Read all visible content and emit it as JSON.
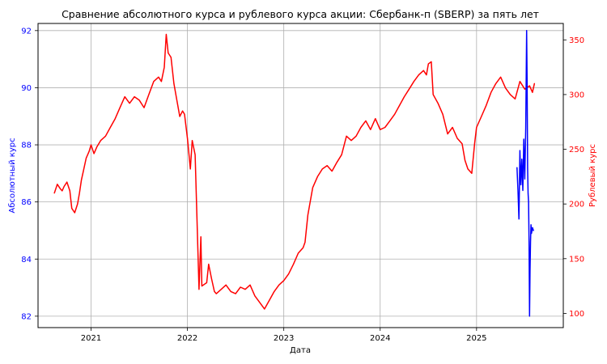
{
  "chart_data": {
    "type": "line",
    "title": "Сравнение абсолютного курса и рублевого курса акции: Сбербанк-п (SBERP) за пять лет",
    "xlabel": "Дата",
    "ylabel_left": "Абсолютный курс",
    "ylabel_right": "Рублевый курс",
    "xlim": [
      2020.45,
      2025.9
    ],
    "ylim_left": [
      81.6,
      92.25
    ],
    "ylim_right": [
      87,
      365
    ],
    "grid": true,
    "x_ticks": [
      2021,
      2022,
      2023,
      2024,
      2025
    ],
    "x_tick_labels": [
      "2021",
      "2022",
      "2023",
      "2024",
      "2025"
    ],
    "y_left_ticks": [
      82,
      84,
      86,
      88,
      90,
      92
    ],
    "y_left_tick_labels": [
      "82",
      "84",
      "86",
      "88",
      "90",
      "92"
    ],
    "y_right_ticks": [
      100,
      150,
      200,
      250,
      300,
      350
    ],
    "y_right_tick_labels": [
      "100",
      "150",
      "200",
      "250",
      "300",
      "350"
    ],
    "colors": {
      "absolute": "#0000ff",
      "ruble": "#ff0000",
      "axis": "#000000",
      "grid": "#b0b0b0"
    },
    "series": [
      {
        "axis": "right",
        "color": "#ff0000",
        "x": [
          2020.62,
          2020.65,
          2020.68,
          2020.7,
          2020.72,
          2020.75,
          2020.78,
          2020.8,
          2020.83,
          2020.86,
          2020.88,
          2020.9,
          2020.92,
          2020.95,
          2020.98,
          2021.0,
          2021.03,
          2021.06,
          2021.1,
          2021.15,
          2021.2,
          2021.25,
          2021.3,
          2021.35,
          2021.4,
          2021.45,
          2021.5,
          2021.55,
          2021.6,
          2021.65,
          2021.7,
          2021.73,
          2021.76,
          2021.78,
          2021.8,
          2021.83,
          2021.86,
          2021.89,
          2021.92,
          2021.95,
          2021.97,
          2022.0,
          2022.03,
          2022.05,
          2022.08,
          2022.12,
          2022.14,
          2022.15,
          2022.2,
          2022.22,
          2022.25,
          2022.28,
          2022.3,
          2022.35,
          2022.4,
          2022.45,
          2022.5,
          2022.55,
          2022.6,
          2022.65,
          2022.7,
          2022.75,
          2022.8,
          2022.85,
          2022.9,
          2022.95,
          2023.0,
          2023.05,
          2023.1,
          2023.15,
          2023.2,
          2023.22,
          2023.25,
          2023.3,
          2023.35,
          2023.4,
          2023.45,
          2023.5,
          2023.55,
          2023.6,
          2023.65,
          2023.7,
          2023.75,
          2023.8,
          2023.85,
          2023.9,
          2023.95,
          2024.0,
          2024.05,
          2024.1,
          2024.15,
          2024.2,
          2024.25,
          2024.3,
          2024.35,
          2024.4,
          2024.45,
          2024.48,
          2024.5,
          2024.53,
          2024.55,
          2024.6,
          2024.65,
          2024.7,
          2024.75,
          2024.8,
          2024.85,
          2024.88,
          2024.91,
          2024.95,
          2024.98,
          2025.0,
          2025.05,
          2025.1,
          2025.15,
          2025.2,
          2025.25,
          2025.3,
          2025.35,
          2025.4,
          2025.45,
          2025.5,
          2025.55,
          2025.58,
          2025.6
        ],
        "values": [
          210,
          218,
          214,
          212,
          216,
          220,
          212,
          196,
          192,
          200,
          210,
          222,
          230,
          242,
          248,
          254,
          246,
          252,
          258,
          262,
          270,
          278,
          288,
          298,
          292,
          298,
          295,
          288,
          300,
          312,
          316,
          312,
          325,
          355,
          338,
          334,
          310,
          295,
          280,
          285,
          282,
          260,
          232,
          258,
          245,
          122,
          170,
          125,
          128,
          145,
          132,
          120,
          118,
          122,
          126,
          120,
          118,
          124,
          122,
          126,
          116,
          110,
          104,
          112,
          120,
          126,
          130,
          136,
          145,
          155,
          160,
          165,
          190,
          215,
          225,
          232,
          235,
          230,
          238,
          245,
          262,
          258,
          262,
          270,
          276,
          268,
          278,
          268,
          270,
          276,
          282,
          290,
          298,
          305,
          312,
          318,
          322,
          318,
          328,
          330,
          300,
          292,
          282,
          264,
          270,
          260,
          255,
          240,
          232,
          228,
          255,
          270,
          280,
          290,
          302,
          310,
          316,
          306,
          300,
          296,
          312,
          305,
          308,
          302,
          310
        ]
      },
      {
        "axis": "left",
        "color": "#0000ff",
        "x": [
          2025.42,
          2025.43,
          2025.44,
          2025.45,
          2025.46,
          2025.47,
          2025.48,
          2025.49,
          2025.5,
          2025.51,
          2025.52,
          2025.525,
          2025.53,
          2025.535,
          2025.54,
          2025.545,
          2025.55,
          2025.555,
          2025.56,
          2025.565,
          2025.57,
          2025.58,
          2025.59
        ],
        "values": [
          87.2,
          86.4,
          85.4,
          87.8,
          86.6,
          87.5,
          86.4,
          88.2,
          86.8,
          88.6,
          92.0,
          90.2,
          87.2,
          86.3,
          86.0,
          84.6,
          82.0,
          83.6,
          84.6,
          85.2,
          84.9,
          85.1,
          85.0
        ]
      }
    ]
  }
}
